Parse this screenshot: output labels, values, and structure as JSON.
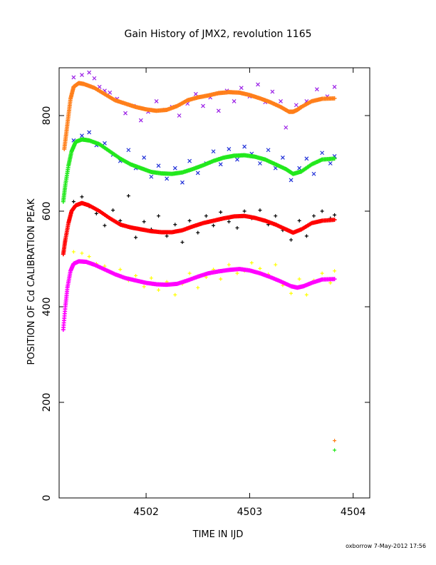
{
  "chart_data": {
    "type": "scatter",
    "title": "Gain History of JMX2, revolution 1165",
    "xlabel": "TIME IN IJD",
    "ylabel": "POSITION OF Cd CALIBRATION PEAK",
    "footer": "oxborrow  7-May-2012 17:56",
    "xlim": [
      4501.16,
      4504.16
    ],
    "ylim": [
      0,
      900
    ],
    "xticks": [
      4502,
      4503,
      4504
    ],
    "yticks": [
      0,
      200,
      400,
      600,
      800
    ],
    "grid": false,
    "colors": {
      "orange": "#ff7f1a",
      "purple": "#9a1fe6",
      "green": "#22e81c",
      "blue": "#1f2fd8",
      "red": "#ff0000",
      "black": "#000000",
      "magenta": "#ff00ff",
      "yellow": "#ffff00"
    },
    "series": [
      {
        "color_key": "orange",
        "marker": "+",
        "style": "fit",
        "x": [
          4501.21,
          4501.23,
          4501.25,
          4501.27,
          4501.3,
          4501.35,
          4501.4,
          4501.5,
          4501.6,
          4501.7,
          4501.8,
          4501.9,
          4502.0,
          4502.1,
          4502.2,
          4502.3,
          4502.4,
          4502.5,
          4502.6,
          4502.7,
          4502.8,
          4502.9,
          4503.0,
          4503.1,
          4503.2,
          4503.3,
          4503.38,
          4503.42,
          4503.46,
          4503.5,
          4503.6,
          4503.7,
          4503.82
        ],
        "y": [
          730,
          765,
          800,
          835,
          860,
          868,
          866,
          858,
          845,
          832,
          825,
          818,
          813,
          810,
          812,
          820,
          832,
          838,
          842,
          847,
          849,
          848,
          843,
          836,
          828,
          818,
          808,
          808,
          812,
          818,
          830,
          835,
          836
        ]
      },
      {
        "color_key": "purple",
        "marker": "x",
        "style": "scatter",
        "x": [
          4501.3,
          4501.38,
          4501.45,
          4501.5,
          4501.55,
          4501.6,
          4501.65,
          4501.72,
          4501.8,
          4501.88,
          4501.95,
          4502.02,
          4502.1,
          4502.18,
          4502.25,
          4502.32,
          4502.4,
          4502.48,
          4502.55,
          4502.62,
          4502.7,
          4502.78,
          4502.85,
          4502.92,
          4503.0,
          4503.08,
          4503.15,
          4503.22,
          4503.3,
          4503.35,
          4503.45,
          4503.55,
          4503.65,
          4503.75,
          4503.82
        ],
        "y": [
          880,
          885,
          890,
          878,
          860,
          852,
          848,
          835,
          805,
          820,
          790,
          808,
          830,
          812,
          818,
          800,
          825,
          845,
          820,
          838,
          810,
          852,
          830,
          858,
          840,
          865,
          828,
          850,
          830,
          775,
          822,
          830,
          855,
          840,
          860
        ]
      },
      {
        "color_key": "green",
        "marker": "+",
        "style": "fit",
        "x": [
          4501.2,
          4501.22,
          4501.25,
          4501.28,
          4501.32,
          4501.38,
          4501.45,
          4501.55,
          4501.65,
          4501.75,
          4501.85,
          4501.95,
          4502.05,
          4502.15,
          4502.25,
          4502.35,
          4502.45,
          4502.55,
          4502.65,
          4502.75,
          4502.85,
          4502.95,
          4503.05,
          4503.15,
          4503.25,
          4503.35,
          4503.42,
          4503.5,
          4503.6,
          4503.7,
          4503.82
        ],
        "y": [
          620,
          655,
          695,
          725,
          745,
          750,
          748,
          740,
          725,
          710,
          698,
          690,
          682,
          679,
          678,
          681,
          688,
          696,
          705,
          712,
          716,
          717,
          714,
          708,
          698,
          688,
          678,
          683,
          698,
          708,
          710
        ]
      },
      {
        "color_key": "blue",
        "marker": "x",
        "style": "scatter",
        "x": [
          4501.3,
          4501.38,
          4501.45,
          4501.52,
          4501.6,
          4501.68,
          4501.75,
          4501.83,
          4501.9,
          4501.98,
          4502.05,
          4502.12,
          4502.2,
          4502.28,
          4502.35,
          4502.42,
          4502.5,
          4502.58,
          4502.65,
          4502.72,
          4502.8,
          4502.88,
          4502.95,
          4503.02,
          4503.1,
          4503.18,
          4503.25,
          4503.32,
          4503.4,
          4503.48,
          4503.55,
          4503.62,
          4503.7,
          4503.78,
          4503.82
        ],
        "y": [
          748,
          758,
          765,
          738,
          742,
          718,
          705,
          728,
          690,
          712,
          672,
          695,
          668,
          690,
          660,
          705,
          680,
          700,
          725,
          698,
          730,
          708,
          735,
          720,
          700,
          728,
          690,
          712,
          665,
          690,
          710,
          678,
          722,
          700,
          715
        ]
      },
      {
        "color_key": "red",
        "marker": "+",
        "style": "fit",
        "x": [
          4501.2,
          4501.22,
          4501.25,
          4501.28,
          4501.32,
          4501.38,
          4501.45,
          4501.55,
          4501.65,
          4501.75,
          4501.85,
          4501.95,
          4502.05,
          4502.15,
          4502.25,
          4502.35,
          4502.45,
          4502.55,
          4502.65,
          4502.75,
          4502.85,
          4502.95,
          4503.05,
          4503.15,
          4503.25,
          4503.35,
          4503.42,
          4503.5,
          4503.6,
          4503.7,
          4503.82
        ],
        "y": [
          510,
          540,
          575,
          600,
          612,
          617,
          612,
          600,
          585,
          572,
          566,
          562,
          558,
          556,
          556,
          560,
          568,
          575,
          580,
          585,
          589,
          590,
          586,
          580,
          572,
          562,
          555,
          562,
          575,
          580,
          582
        ]
      },
      {
        "color_key": "black",
        "marker": "+",
        "style": "scatter",
        "x": [
          4501.3,
          4501.38,
          4501.45,
          4501.52,
          4501.6,
          4501.68,
          4501.75,
          4501.83,
          4501.9,
          4501.98,
          4502.05,
          4502.12,
          4502.2,
          4502.28,
          4502.35,
          4502.42,
          4502.5,
          4502.58,
          4502.65,
          4502.72,
          4502.8,
          4502.88,
          4502.95,
          4503.02,
          4503.1,
          4503.18,
          4503.25,
          4503.32,
          4503.4,
          4503.48,
          4503.55,
          4503.62,
          4503.7,
          4503.78,
          4503.82
        ],
        "y": [
          620,
          630,
          610,
          595,
          570,
          602,
          580,
          632,
          545,
          578,
          562,
          590,
          548,
          572,
          535,
          580,
          555,
          590,
          570,
          598,
          578,
          565,
          600,
          585,
          602,
          572,
          590,
          560,
          540,
          580,
          548,
          590,
          600,
          585,
          592
        ]
      },
      {
        "color_key": "magenta",
        "marker": "+",
        "style": "fit",
        "x": [
          4501.2,
          4501.22,
          4501.24,
          4501.27,
          4501.3,
          4501.35,
          4501.42,
          4501.5,
          4501.6,
          4501.7,
          4501.8,
          4501.9,
          4502.0,
          4502.1,
          4502.2,
          4502.3,
          4502.4,
          4502.5,
          4502.6,
          4502.7,
          4502.8,
          4502.9,
          4503.0,
          4503.1,
          4503.2,
          4503.3,
          4503.4,
          4503.46,
          4503.52,
          4503.6,
          4503.7,
          4503.82
        ],
        "y": [
          352,
          400,
          440,
          475,
          490,
          495,
          494,
          488,
          478,
          468,
          460,
          455,
          450,
          447,
          446,
          448,
          455,
          463,
          470,
          474,
          477,
          479,
          476,
          470,
          462,
          453,
          443,
          440,
          443,
          450,
          457,
          458
        ]
      },
      {
        "color_key": "yellow",
        "marker": "+",
        "style": "scatter",
        "x": [
          4501.3,
          4501.38,
          4501.45,
          4501.52,
          4501.6,
          4501.68,
          4501.75,
          4501.83,
          4501.9,
          4501.98,
          4502.05,
          4502.12,
          4502.2,
          4502.28,
          4502.35,
          4502.42,
          4502.5,
          4502.58,
          4502.65,
          4502.72,
          4502.8,
          4502.88,
          4502.95,
          4503.02,
          4503.1,
          4503.18,
          4503.25,
          4503.32,
          4503.4,
          4503.48,
          4503.55,
          4503.62,
          4503.7,
          4503.78,
          4503.82
        ],
        "y": [
          515,
          512,
          505,
          490,
          485,
          470,
          478,
          455,
          465,
          442,
          460,
          435,
          452,
          425,
          448,
          470,
          440,
          462,
          478,
          458,
          488,
          470,
          475,
          492,
          480,
          468,
          488,
          445,
          428,
          458,
          425,
          455,
          470,
          450,
          475
        ]
      },
      {
        "color_key": "orange",
        "marker": "+",
        "style": "scatter",
        "x": [
          4503.82
        ],
        "y": [
          120
        ]
      },
      {
        "color_key": "green",
        "marker": "+",
        "style": "scatter",
        "x": [
          4503.82
        ],
        "y": [
          100
        ]
      }
    ]
  }
}
